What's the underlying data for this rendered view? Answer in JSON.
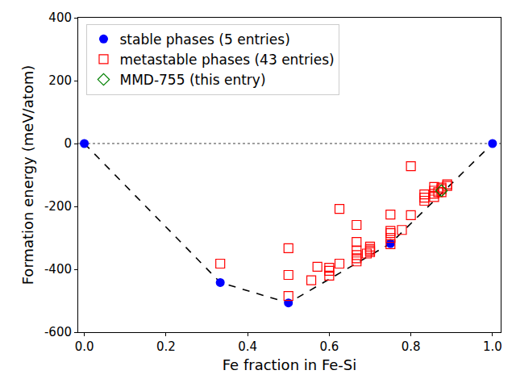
{
  "chart_data": {
    "type": "scatter",
    "xlabel": "Fe fraction in Fe-Si",
    "ylabel": "Formation energy (meV/atom)",
    "xlim": [
      -0.015,
      1.02
    ],
    "xticks": [
      {
        "value": 0,
        "label": "0.0"
      },
      {
        "value": 0.2,
        "label": "0.2"
      },
      {
        "value": 0.4,
        "label": "0.4"
      },
      {
        "value": 0.6,
        "label": "0.6"
      },
      {
        "value": 0.8,
        "label": "0.8"
      },
      {
        "value": 1,
        "label": "1.0"
      }
    ],
    "ylim": [
      -600,
      400
    ],
    "yticks": [
      -600,
      -400,
      -200,
      0,
      200,
      400
    ],
    "grid": false,
    "legend": "upper left",
    "series": [
      {
        "type": "line",
        "line_style": "dotted",
        "color": "#808080",
        "x": [
          -0.015,
          1.02
        ],
        "values": [
          0,
          0
        ]
      },
      {
        "type": "line",
        "line_style": "dashed",
        "color": "#000000",
        "x": [
          0,
          0.333,
          0.5,
          0.75,
          1
        ],
        "values": [
          0,
          -442,
          -507,
          -318,
          0
        ]
      },
      {
        "type": "scatter",
        "name": "stable phases (5 entries)",
        "color": "#0000ff",
        "marker": "circle",
        "x": [
          0,
          0.333,
          0.5,
          0.75,
          1
        ],
        "values": [
          0,
          -442,
          -507,
          -318,
          0
        ]
      },
      {
        "type": "scatter",
        "name": "metastable phases (43 entries)",
        "color": "#ff0000",
        "marker": "square-open",
        "x": [
          0.333,
          0.5,
          0.5,
          0.5,
          0.556,
          0.571,
          0.6,
          0.6,
          0.6,
          0.625,
          0.625,
          0.667,
          0.667,
          0.667,
          0.667,
          0.667,
          0.7,
          0.7,
          0.7,
          0.75,
          0.75,
          0.75,
          0.75,
          0.75,
          0.778,
          0.8,
          0.8,
          0.833,
          0.833,
          0.833,
          0.857,
          0.857,
          0.857,
          0.857,
          0.867,
          0.875,
          0.875,
          0.875,
          0.889,
          0.889,
          0.667,
          0.692,
          0.7
        ],
        "values": [
          -382,
          -333,
          -418,
          -485,
          -435,
          -392,
          -395,
          -405,
          -420,
          -382,
          -208,
          -259,
          -313,
          -355,
          -365,
          -375,
          -328,
          -335,
          -345,
          -226,
          -278,
          -285,
          -300,
          -320,
          -275,
          -72,
          -228,
          -162,
          -172,
          -182,
          -138,
          -150,
          -160,
          -170,
          -155,
          -145,
          -155,
          -140,
          -130,
          -135,
          -340,
          -350,
          -340
        ]
      },
      {
        "type": "scatter",
        "name": "MMD-755 (this entry)",
        "color": "#008000",
        "marker": "diamond-open",
        "x": [
          0.875
        ],
        "values": [
          -150
        ]
      }
    ]
  }
}
